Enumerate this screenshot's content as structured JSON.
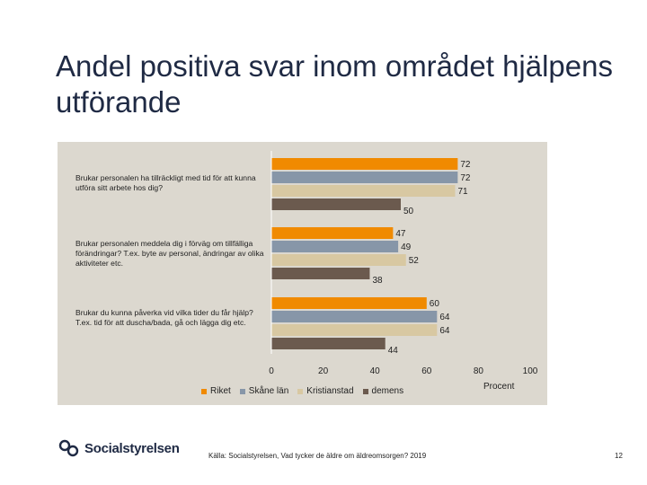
{
  "slide": {
    "title": "Andel positiva svar inom området hjälpens utförande",
    "source": "Källa: Socialstyrelsen, Vad tycker de äldre om äldreomsorgen? 2019",
    "page_number": "12",
    "logo_text": "Socialstyrelsen"
  },
  "chart_data": {
    "type": "bar",
    "orientation": "horizontal",
    "categories": [
      "Brukar personalen ha tillräckligt med tid för att kunna utföra sitt arbete hos dig?",
      "Brukar personalen meddela dig i förväg om tillfälliga förändringar? T.ex. byte av personal, ändringar av olika aktiviteter etc.",
      "Brukar du kunna påverka vid vilka tider du får hjälp? T.ex. tid för att duscha/bada, gå och lägga dig etc."
    ],
    "series": [
      {
        "name": "Riket",
        "color": "#f08a00",
        "values": [
          72,
          47,
          60
        ]
      },
      {
        "name": "Skåne län",
        "color": "#8796a8",
        "values": [
          72,
          49,
          64
        ]
      },
      {
        "name": "Kristianstad",
        "color": "#d8c8a2",
        "values": [
          71,
          52,
          64
        ]
      },
      {
        "name": "demens",
        "color": "#6b5a4e",
        "values": [
          50,
          38,
          44
        ]
      }
    ],
    "xlim": [
      0,
      100
    ],
    "xticks": [
      "0",
      "20",
      "40",
      "60",
      "80",
      "100"
    ],
    "xlabel": "Procent",
    "legend_position": "bottom",
    "grid": false
  }
}
